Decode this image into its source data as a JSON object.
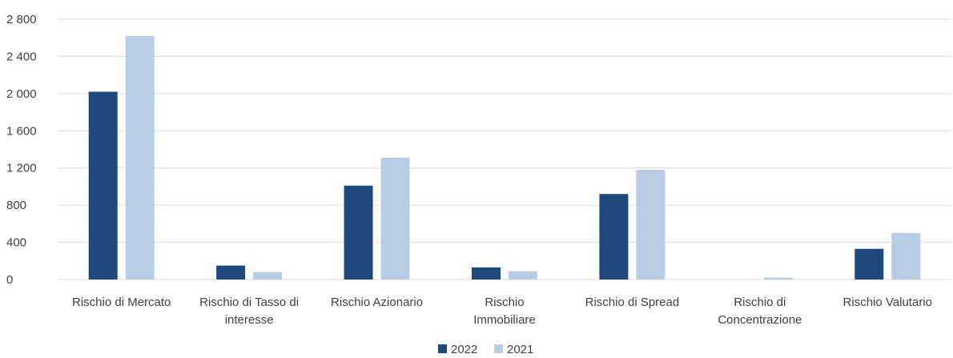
{
  "chart_data": {
    "type": "bar",
    "title": "",
    "xlabel": "",
    "ylabel": "",
    "ylim": [
      0,
      2800
    ],
    "yticks": [
      0,
      400,
      800,
      1200,
      1600,
      2000,
      2400,
      2800
    ],
    "ytick_labels": [
      "0",
      "400",
      "800",
      "1 200",
      "1 600",
      "2 000",
      "2 400",
      "2 800"
    ],
    "grid": true,
    "legend_position": "bottom",
    "categories": [
      [
        "Rischio di Mercato"
      ],
      [
        "Rischio di Tasso di",
        "interesse"
      ],
      [
        "Rischio Azionario"
      ],
      [
        "Rischio",
        "Immobiliare"
      ],
      [
        "Rischio di Spread"
      ],
      [
        "Rischio di",
        "Concentrazione"
      ],
      [
        "Rischio Valutario"
      ]
    ],
    "series": [
      {
        "name": "2022",
        "color": "#1f497d",
        "values": [
          2020,
          150,
          1010,
          130,
          920,
          0,
          330
        ]
      },
      {
        "name": "2021",
        "color": "#b8cce4",
        "values": [
          2620,
          80,
          1310,
          90,
          1180,
          20,
          500
        ]
      }
    ]
  }
}
